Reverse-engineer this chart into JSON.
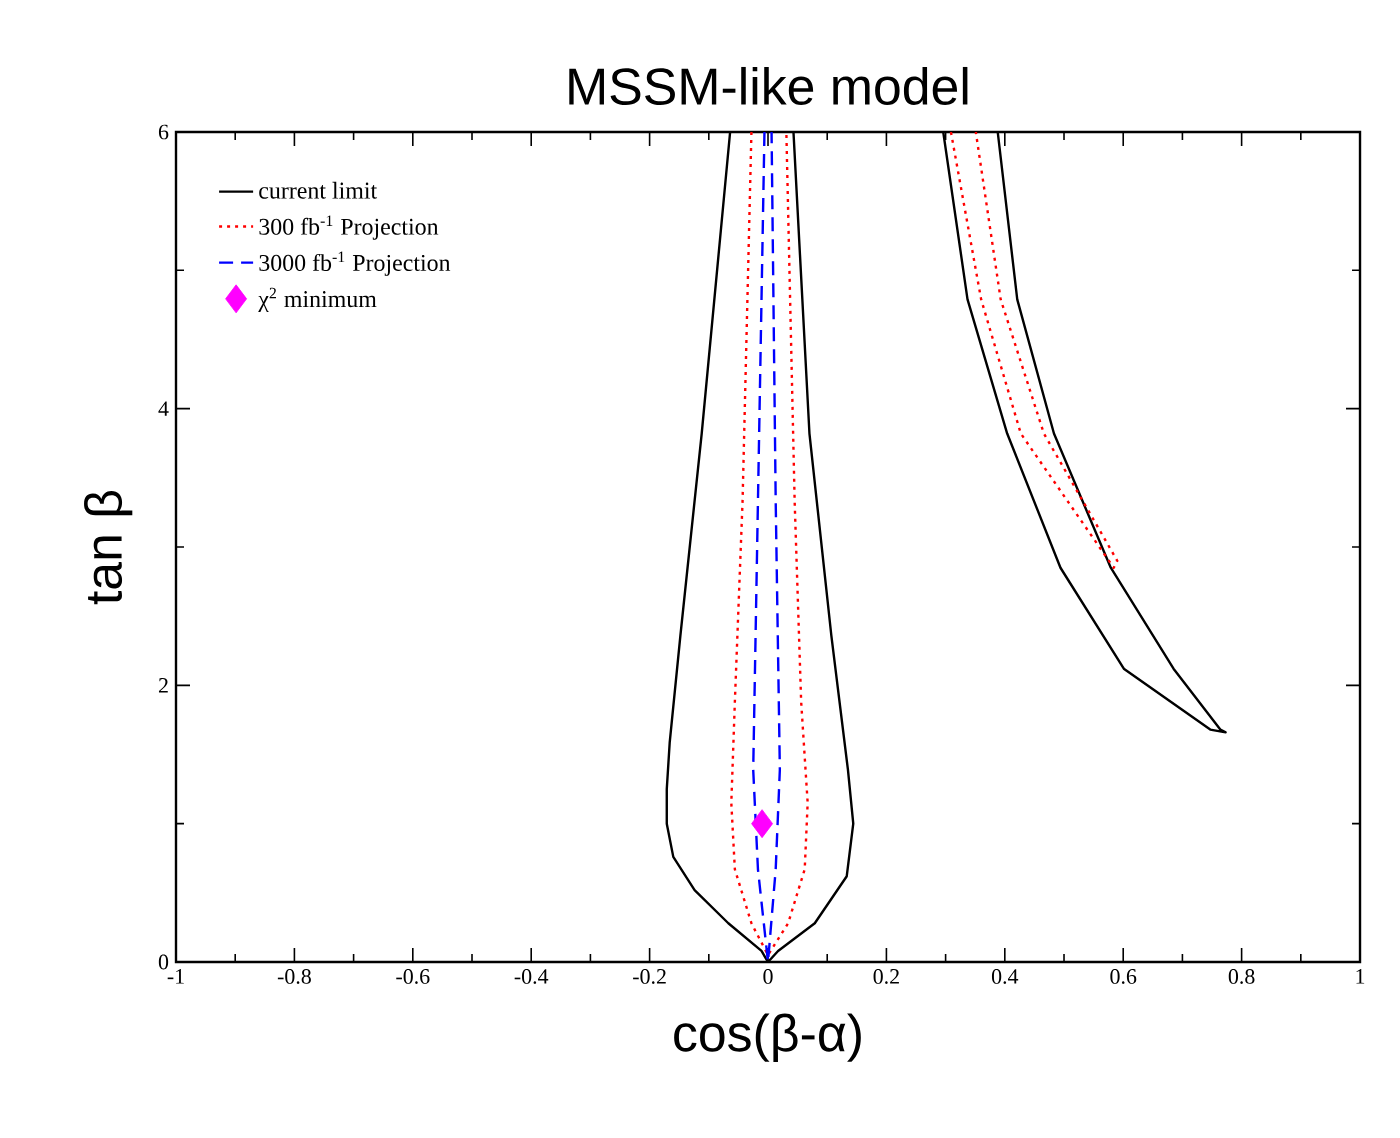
{
  "chart_data": {
    "type": "line",
    "title": "MSSM-like model",
    "xlabel": "cos(β-α)",
    "ylabel": "tan β",
    "xlim": [
      -1,
      1
    ],
    "ylim": [
      0,
      6
    ],
    "xticks": [
      -1,
      -0.8,
      -0.6,
      -0.4,
      -0.2,
      0,
      0.2,
      0.4,
      0.6,
      0.8,
      1
    ],
    "yticks": [
      0,
      2,
      4,
      6
    ],
    "grid": false,
    "legend": "top left",
    "series": [
      {
        "name": "current limit",
        "color": "#000000",
        "line_style": "solid",
        "x": [
          -0.064,
          -0.112,
          -0.148,
          -0.166,
          -0.171,
          -0.171,
          -0.16,
          -0.124,
          -0.067,
          -0.011,
          0,
          0.017,
          0.079,
          0.133,
          0.144,
          0.135,
          0.107,
          0.07,
          0.043,
          0.2,
          0.296,
          0.337,
          0.404,
          0.494,
          0.601,
          0.747,
          0.773,
          0.764,
          0.685,
          0.579,
          0.483,
          0.421,
          0.388
        ],
        "values": [
          6,
          3.82,
          2.36,
          1.59,
          1.25,
          1.0,
          0.76,
          0.52,
          0.28,
          0.08,
          0,
          0.08,
          0.28,
          0.62,
          1.0,
          1.39,
          2.36,
          3.82,
          6,
          null,
          6,
          4.79,
          3.82,
          2.85,
          2.12,
          1.68,
          1.66,
          1.68,
          2.12,
          2.85,
          3.82,
          4.79,
          6
        ]
      },
      {
        "name": "300 fb$^{-1}$ Projection",
        "color": "#ff0000",
        "line_style": "dotted",
        "x": [
          -0.028,
          -0.043,
          -0.056,
          -0.062,
          -0.056,
          -0.028,
          0,
          0.034,
          0.062,
          0.067,
          0.056,
          0.045,
          0.031,
          0.2,
          0.309,
          0.36,
          0.427,
          0.584,
          0.59,
          0.466,
          0.393,
          0.351
        ],
        "values": [
          6,
          3.33,
          1.88,
          1.15,
          0.67,
          0.28,
          0.05,
          0.28,
          0.67,
          1.15,
          1.88,
          3.33,
          6,
          null,
          6,
          4.79,
          3.82,
          2.85,
          2.9,
          3.82,
          4.79,
          6
        ]
      },
      {
        "name": "3000 fb$^{-1}$ Projection",
        "color": "#0000ff",
        "line_style": "dashed",
        "x": [
          -0.006,
          -0.017,
          -0.025,
          -0.017,
          0,
          0.013,
          0.02,
          0.013,
          0.006
        ],
        "values": [
          6,
          3.33,
          1.39,
          0.67,
          0,
          0.67,
          1.39,
          3.33,
          6
        ]
      },
      {
        "name": "χ$^{2}$ minimum",
        "type": "scatter",
        "marker": "diamond",
        "color": "#ff00ff",
        "x": [
          -0.01
        ],
        "values": [
          1.0
        ]
      }
    ]
  }
}
